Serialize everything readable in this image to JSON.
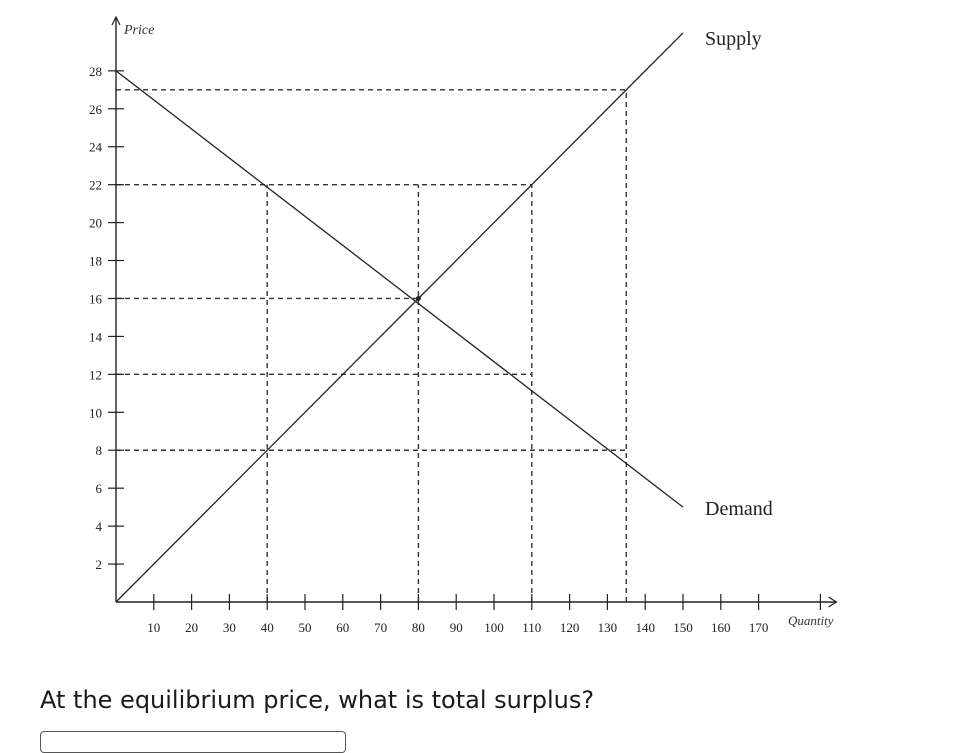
{
  "chart_data": {
    "type": "line",
    "xlabel": "Quantity",
    "ylabel": "Price",
    "x_ticks": [
      10,
      20,
      30,
      40,
      50,
      60,
      70,
      80,
      90,
      100,
      110,
      120,
      130,
      140,
      150,
      160,
      170
    ],
    "y_ticks": [
      2,
      4,
      6,
      8,
      10,
      12,
      14,
      16,
      18,
      20,
      22,
      24,
      26,
      28
    ],
    "xlim": [
      0,
      180
    ],
    "ylim": [
      0,
      30
    ],
    "series": [
      {
        "name": "Supply",
        "points": [
          [
            0,
            0
          ],
          [
            150,
            30
          ]
        ]
      },
      {
        "name": "Demand",
        "points": [
          [
            0,
            28
          ],
          [
            150,
            5
          ]
        ]
      }
    ],
    "reference_prices": [
      27,
      22,
      16,
      12,
      8
    ],
    "reference_quantities": [
      40,
      80,
      110,
      135
    ],
    "reference_lines": {
      "horizontal": [
        {
          "price": 27,
          "to_quantity": 135
        },
        {
          "price": 22,
          "to_quantity": 110
        },
        {
          "price": 16,
          "to_quantity": 80
        },
        {
          "price": 12,
          "to_quantity": 110
        },
        {
          "price": 8,
          "to_quantity": 135
        }
      ],
      "vertical": [
        {
          "quantity": 40,
          "to_price": 22
        },
        {
          "quantity": 80,
          "to_price": 22
        },
        {
          "quantity": 110,
          "to_price": 22
        },
        {
          "quantity": 135,
          "to_price": 27
        }
      ]
    },
    "equilibrium": {
      "quantity": 80,
      "price": 16
    },
    "grid": false
  },
  "question": {
    "text": "At the equilibrium price, what is total surplus?"
  }
}
